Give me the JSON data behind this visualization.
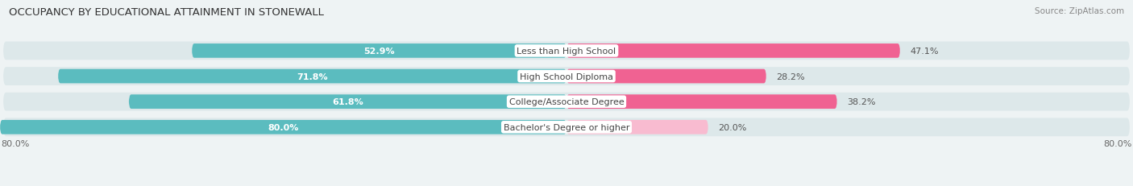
{
  "title": "OCCUPANCY BY EDUCATIONAL ATTAINMENT IN STONEWALL",
  "source": "Source: ZipAtlas.com",
  "categories": [
    "Less than High School",
    "High School Diploma",
    "College/Associate Degree",
    "Bachelor's Degree or higher"
  ],
  "owner_values": [
    52.9,
    71.8,
    61.8,
    80.0
  ],
  "renter_values": [
    47.1,
    28.2,
    38.2,
    20.0
  ],
  "owner_color": "#5bbcbf",
  "renter_colors": [
    "#f06292",
    "#f06292",
    "#f06292",
    "#f8bbd0"
  ],
  "background_color": "#eef3f4",
  "row_bg_color": "#dde8ea",
  "title_fontsize": 9.5,
  "source_fontsize": 7.5,
  "cat_fontsize": 8.0,
  "value_fontsize": 8.0,
  "legend_fontsize": 8.5,
  "x_axis_label": "80.0%",
  "max_val": 80.0,
  "xlim": 85
}
